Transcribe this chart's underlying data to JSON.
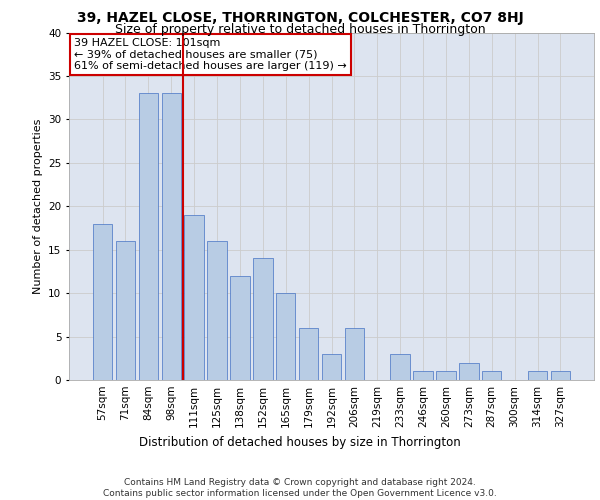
{
  "title1": "39, HAZEL CLOSE, THORRINGTON, COLCHESTER, CO7 8HJ",
  "title2": "Size of property relative to detached houses in Thorrington",
  "xlabel": "Distribution of detached houses by size in Thorrington",
  "ylabel": "Number of detached properties",
  "categories": [
    "57sqm",
    "71sqm",
    "84sqm",
    "98sqm",
    "111sqm",
    "125sqm",
    "138sqm",
    "152sqm",
    "165sqm",
    "179sqm",
    "192sqm",
    "206sqm",
    "219sqm",
    "233sqm",
    "246sqm",
    "260sqm",
    "273sqm",
    "287sqm",
    "300sqm",
    "314sqm",
    "327sqm"
  ],
  "values": [
    18,
    16,
    33,
    33,
    19,
    16,
    12,
    14,
    10,
    6,
    3,
    6,
    0,
    3,
    1,
    1,
    2,
    1,
    0,
    1,
    1
  ],
  "bar_color": "#b8cce4",
  "bar_edge_color": "#4472c4",
  "vline_x": 3.5,
  "vline_color": "#cc0000",
  "annotation_line1": "39 HAZEL CLOSE: 101sqm",
  "annotation_line2": "← 39% of detached houses are smaller (75)",
  "annotation_line3": "61% of semi-detached houses are larger (119) →",
  "annotation_box_color": "#ffffff",
  "annotation_box_edge_color": "#cc0000",
  "ylim": [
    0,
    40
  ],
  "yticks": [
    0,
    5,
    10,
    15,
    20,
    25,
    30,
    35,
    40
  ],
  "grid_color": "#cccccc",
  "bg_color": "#dde4f0",
  "footer_text": "Contains HM Land Registry data © Crown copyright and database right 2024.\nContains public sector information licensed under the Open Government Licence v3.0.",
  "title1_fontsize": 10,
  "title2_fontsize": 9,
  "xlabel_fontsize": 8.5,
  "ylabel_fontsize": 8,
  "tick_fontsize": 7.5,
  "annotation_fontsize": 8,
  "footer_fontsize": 6.5
}
